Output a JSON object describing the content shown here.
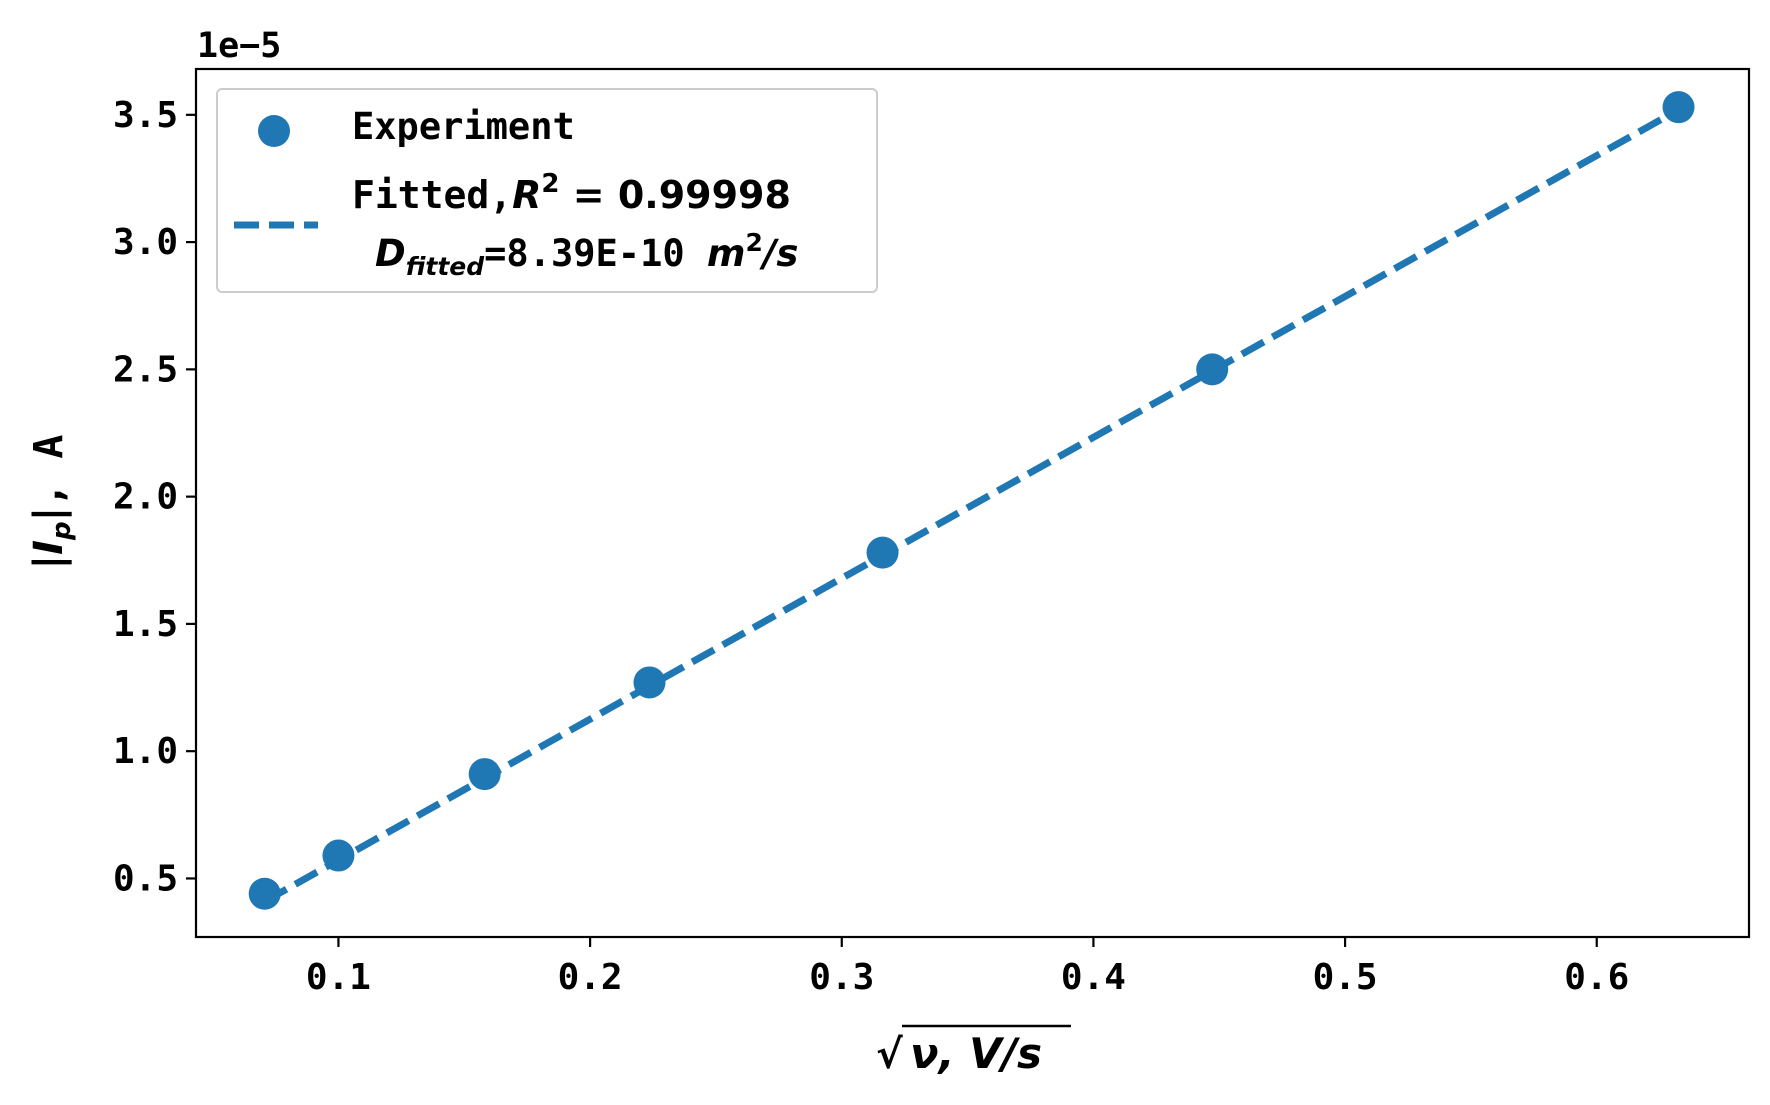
{
  "chart_data": {
    "type": "scatter",
    "title": "",
    "offset_label": "1e−5",
    "xlabel": {
      "sqrt": "√",
      "text": "ν, V/s"
    },
    "ylabel": {
      "pipe_left": "|",
      "I": "I",
      "p": "p",
      "pipe_right": "|",
      "unit": ",  A"
    },
    "x_ticks": [
      "0.1",
      "0.2",
      "0.3",
      "0.4",
      "0.5",
      "0.6"
    ],
    "y_ticks": [
      "0.5",
      "1.0",
      "1.5",
      "2.0",
      "2.5",
      "3.0",
      "3.5"
    ],
    "x_tick_values": [
      0.1,
      0.2,
      0.3,
      0.4,
      0.5,
      0.6
    ],
    "y_tick_values": [
      0.5,
      1.0,
      1.5,
      2.0,
      2.5,
      3.0,
      3.5
    ],
    "xlim": [
      0.0434,
      0.6605
    ],
    "ylim": [
      0.27,
      3.68
    ],
    "y_scale_note": "values are in units of 1e-5 A",
    "grid": false,
    "legend_position": "upper-left",
    "series": [
      {
        "name": "Experiment",
        "kind": "scatter",
        "color": "#1f77b4",
        "x": [
          0.0707,
          0.1,
          0.1581,
          0.2236,
          0.3162,
          0.4472,
          0.6325
        ],
        "y": [
          0.44,
          0.59,
          0.91,
          1.27,
          1.78,
          2.5,
          3.53
        ]
      },
      {
        "name": "Fitted",
        "kind": "line",
        "style": "dashed",
        "color": "#1f77b4",
        "x": [
          0.0707,
          0.6325
        ],
        "y": [
          0.41,
          3.52
        ]
      }
    ],
    "legend": {
      "experiment_label": "Experiment",
      "fitted_prefix": "Fitted,",
      "r2_symbol": "R",
      "r2_exp": "2",
      "r2_value": " = 0.99998",
      "d_symbol": "D",
      "d_sub": "fitted",
      "d_value": "=8.39E-10 ",
      "d_unit_m": "m",
      "d_unit_exp": "2",
      "d_unit_rest": "/s"
    }
  }
}
